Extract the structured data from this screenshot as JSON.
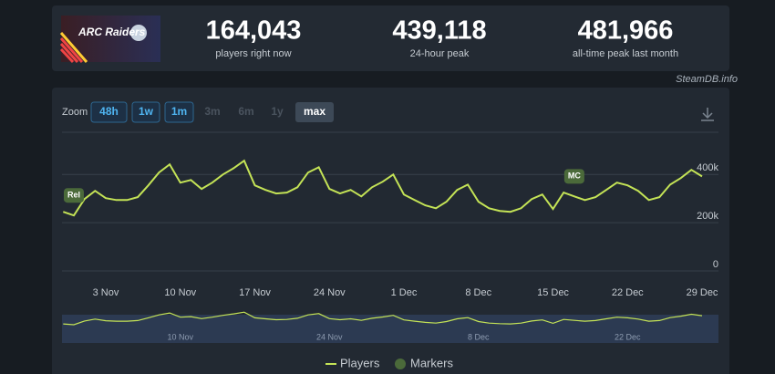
{
  "header": {
    "logo": "ARC Raiders",
    "stats": [
      {
        "value": "164,043",
        "label": "players right now"
      },
      {
        "value": "439,118",
        "label": "24-hour peak"
      },
      {
        "value": "481,966",
        "label": "all-time peak last month"
      }
    ],
    "source": "SteamDB.info"
  },
  "zoom": {
    "label": "Zoom",
    "buttons": [
      "48h",
      "1w",
      "1m",
      "3m",
      "6m",
      "1y",
      "max"
    ],
    "enabled": [
      true,
      true,
      true,
      false,
      false,
      false,
      true
    ],
    "active": "max"
  },
  "chart_data": {
    "type": "line",
    "x": [
      "30 Oct",
      "31 Oct",
      "1 Nov",
      "2 Nov",
      "3 Nov",
      "4 Nov",
      "5 Nov",
      "6 Nov",
      "7 Nov",
      "8 Nov",
      "9 Nov",
      "10 Nov",
      "11 Nov",
      "12 Nov",
      "13 Nov",
      "14 Nov",
      "15 Nov",
      "16 Nov",
      "17 Nov",
      "18 Nov",
      "19 Nov",
      "20 Nov",
      "21 Nov",
      "22 Nov",
      "23 Nov",
      "24 Nov",
      "25 Nov",
      "26 Nov",
      "27 Nov",
      "28 Nov",
      "29 Nov",
      "30 Nov",
      "1 Dec",
      "2 Dec",
      "3 Dec",
      "4 Dec",
      "5 Dec",
      "6 Dec",
      "7 Dec",
      "8 Dec",
      "9 Dec",
      "10 Dec",
      "11 Dec",
      "12 Dec",
      "13 Dec",
      "14 Dec",
      "15 Dec",
      "16 Dec",
      "17 Dec",
      "18 Dec",
      "19 Dec",
      "20 Dec",
      "21 Dec",
      "22 Dec",
      "23 Dec",
      "24 Dec",
      "25 Dec",
      "26 Dec",
      "27 Dec",
      "28 Dec",
      "29 Dec"
    ],
    "series": [
      {
        "name": "Players",
        "color": "#c4e356",
        "values": [
          245000,
          230000,
          298000,
          332000,
          302000,
          294000,
          294000,
          306000,
          355000,
          408000,
          442000,
          366000,
          377000,
          340000,
          366000,
          400000,
          426000,
          457000,
          355000,
          336000,
          321000,
          325000,
          347000,
          408000,
          430000,
          340000,
          321000,
          336000,
          309000,
          347000,
          370000,
          400000,
          317000,
          294000,
          272000,
          260000,
          287000,
          336000,
          358000,
          287000,
          260000,
          249000,
          245000,
          260000,
          298000,
          317000,
          257000,
          325000,
          309000,
          294000,
          306000,
          336000,
          366000,
          355000,
          332000,
          294000,
          306000,
          358000,
          385000,
          419000,
          392000
        ]
      }
    ],
    "markers": {
      "name": "Markers",
      "color": "#4b6a3a"
    },
    "annotations": [
      {
        "label": "Rel",
        "x": "31 Oct"
      },
      {
        "label": "MC",
        "x": "17 Dec"
      }
    ],
    "xticks": [
      "3 Nov",
      "10 Nov",
      "17 Nov",
      "24 Nov",
      "1 Dec",
      "8 Dec",
      "15 Dec",
      "22 Dec",
      "29 Dec"
    ],
    "navigator_ticks": [
      "10 Nov",
      "24 Nov",
      "8 Dec",
      "22 Dec"
    ],
    "ylim": [
      0,
      575000
    ],
    "yticks": [
      0,
      {
        "value": 200000,
        "label": "200k"
      },
      {
        "value": 400000,
        "label": "400k"
      }
    ],
    "grid": true,
    "legend": "bottom"
  }
}
